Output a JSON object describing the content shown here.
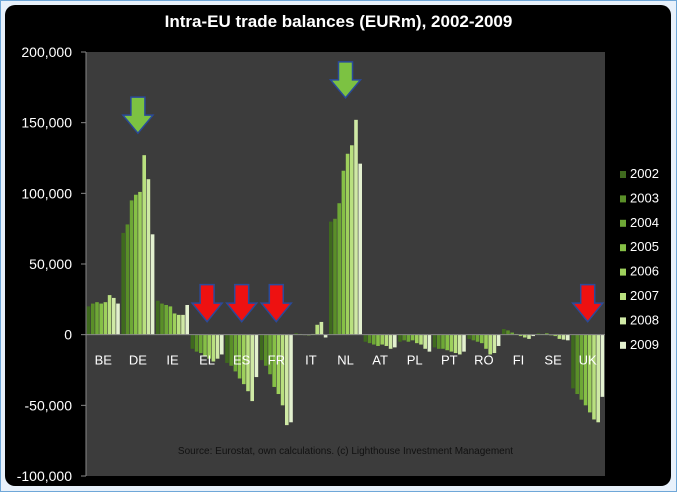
{
  "chart_data": {
    "type": "bar",
    "title": "Intra-EU trade balances (EURm), 2002-2009",
    "xlabel": "",
    "ylabel": "",
    "ylim": [
      -100000,
      200000
    ],
    "yticks": [
      200000,
      150000,
      100000,
      50000,
      0,
      -50000,
      -100000
    ],
    "ytick_labels": [
      "200,000",
      "150,000",
      "100,000",
      "50,000",
      "0",
      "-50,000",
      "-100,000"
    ],
    "categories": [
      "BE",
      "DE",
      "IE",
      "EL",
      "ES",
      "FR",
      "IT",
      "NL",
      "AT",
      "PL",
      "PT",
      "RO",
      "FI",
      "SE",
      "UK"
    ],
    "series": [
      {
        "name": "2002",
        "values": [
          20000,
          72000,
          24000,
          -10000,
          -20000,
          -18000,
          1000,
          80000,
          -5000,
          -5000,
          -9000,
          -3000,
          4000,
          1000,
          -38000
        ]
      },
      {
        "name": "2003",
        "values": [
          22000,
          78000,
          22000,
          -12000,
          -22000,
          -22000,
          500,
          82000,
          -6000,
          -4000,
          -10000,
          -4000,
          3000,
          500,
          -42000
        ]
      },
      {
        "name": "2004",
        "values": [
          23000,
          95000,
          21000,
          -13000,
          -26000,
          -28000,
          0,
          93000,
          -7000,
          -5000,
          -10000,
          -5000,
          1500,
          1000,
          -46000
        ]
      },
      {
        "name": "2005",
        "values": [
          22000,
          99000,
          20000,
          -15000,
          -31000,
          -37000,
          -500,
          116000,
          -8000,
          -4000,
          -11000,
          -6000,
          500,
          -500,
          -50000
        ]
      },
      {
        "name": "2006",
        "values": [
          23000,
          101000,
          15000,
          -17000,
          -35000,
          -42000,
          500,
          128000,
          -7000,
          -6000,
          -12000,
          -10000,
          -1000,
          -1000,
          -55000
        ]
      },
      {
        "name": "2007",
        "values": [
          28000,
          127000,
          14000,
          -19000,
          -40000,
          -50000,
          7000,
          134000,
          -8000,
          -7000,
          -13000,
          -14000,
          -2000,
          -3000,
          -60000
        ]
      },
      {
        "name": "2008",
        "values": [
          26000,
          110000,
          14000,
          -17000,
          -47000,
          -64000,
          9000,
          152000,
          -10000,
          -10000,
          -14000,
          -13000,
          -3000,
          -3500,
          -62000
        ]
      },
      {
        "name": "2009",
        "values": [
          22000,
          71000,
          21000,
          -14000,
          -30000,
          -62000,
          -2000,
          121000,
          -9000,
          -12000,
          -12000,
          -8000,
          -1000,
          -4000,
          -44000
        ]
      }
    ],
    "grid": false,
    "legend_position": "right",
    "annotations": {
      "green_arrows": [
        "DE",
        "NL"
      ],
      "red_arrows": [
        "EL",
        "ES",
        "FR",
        "UK"
      ]
    },
    "source": "Source: Eurostat, own calculations. (c) Lighthouse Investment Management"
  },
  "colors": {
    "background": "#000000",
    "plot_area": "#3c3c3c",
    "series": [
      "#3f6a1e",
      "#5a8f28",
      "#6ea836",
      "#86c046",
      "#9ed05c",
      "#b9e07f",
      "#cfe9a5",
      "#e3f1cf"
    ],
    "green_arrow": "#7cc242",
    "red_arrow": "#ee1111"
  }
}
